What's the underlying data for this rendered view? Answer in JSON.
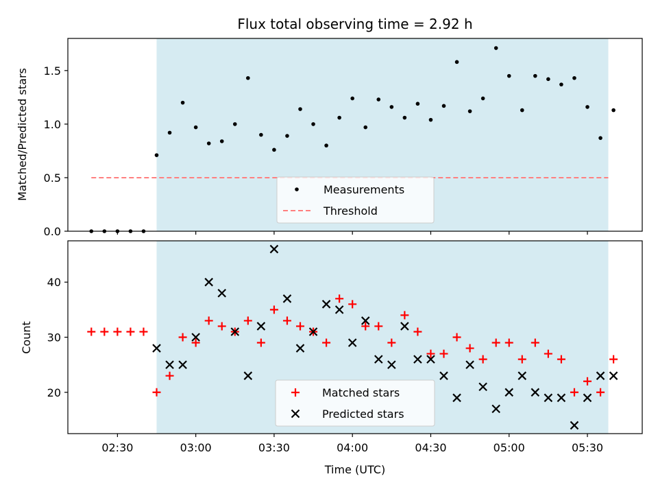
{
  "figure": {
    "title": "Flux total observing time = 2.92 h",
    "background": "#ffffff"
  },
  "colors": {
    "shade": "#add8e6",
    "threshold": "#ff7f7f",
    "measurement": "#000000",
    "matched": "#ff0000",
    "predicted": "#000000"
  },
  "chart_data": [
    {
      "type": "scatter",
      "panel": "top",
      "title": "Flux total observing time = 2.92 h",
      "ylabel": "Matched/Predicted stars",
      "xlabel": "",
      "xlim": [
        "02:11",
        "05:51"
      ],
      "ylim": [
        0,
        1.8
      ],
      "x_ticks": [
        "02:30",
        "03:00",
        "03:30",
        "04:00",
        "04:30",
        "05:00",
        "05:30"
      ],
      "x_tick_labels_visible": false,
      "y_ticks": [
        "0.0",
        "0.5",
        "1.0",
        "1.5"
      ],
      "shaded_interval": [
        "02:45",
        "05:38"
      ],
      "legend_position": "lower center",
      "series": [
        {
          "name": "Measurements",
          "kind": "dot",
          "x": [
            "02:20",
            "02:25",
            "02:30",
            "02:35",
            "02:40",
            "02:45",
            "02:50",
            "02:55",
            "03:00",
            "03:05",
            "03:10",
            "03:15",
            "03:20",
            "03:25",
            "03:30",
            "03:35",
            "03:40",
            "03:45",
            "03:50",
            "03:55",
            "04:00",
            "04:05",
            "04:10",
            "04:15",
            "04:20",
            "04:25",
            "04:30",
            "04:35",
            "04:40",
            "04:45",
            "04:50",
            "04:55",
            "05:00",
            "05:05",
            "05:10",
            "05:15",
            "05:20",
            "05:25",
            "05:30",
            "05:35",
            "05:40"
          ],
          "y": [
            0.0,
            0.0,
            0.0,
            0.0,
            0.0,
            0.71,
            0.92,
            1.2,
            0.97,
            0.82,
            0.84,
            1.0,
            1.43,
            0.9,
            0.76,
            0.89,
            1.14,
            1.0,
            0.8,
            1.06,
            1.24,
            0.97,
            1.23,
            1.16,
            1.06,
            1.19,
            1.04,
            1.17,
            1.58,
            1.12,
            1.24,
            1.71,
            1.45,
            1.13,
            1.45,
            1.42,
            1.37,
            1.43,
            1.16,
            0.87,
            1.13
          ]
        },
        {
          "name": "Threshold",
          "kind": "dashed-line",
          "x": [
            "02:20",
            "05:38"
          ],
          "y": [
            0.5,
            0.5
          ]
        }
      ]
    },
    {
      "type": "scatter",
      "panel": "bottom",
      "xlabel": "Time (UTC)",
      "ylabel": "Count",
      "xlim": [
        "02:11",
        "05:51"
      ],
      "ylim": [
        12.5,
        47.5
      ],
      "x_ticks": [
        "02:30",
        "03:00",
        "03:30",
        "04:00",
        "04:30",
        "05:00",
        "05:30"
      ],
      "y_ticks": [
        "20",
        "30",
        "40"
      ],
      "shaded_interval": [
        "02:45",
        "05:38"
      ],
      "legend_position": "lower center",
      "series": [
        {
          "name": "Matched stars",
          "kind": "plus",
          "x": [
            "02:20",
            "02:25",
            "02:30",
            "02:35",
            "02:40",
            "02:45",
            "02:50",
            "02:55",
            "03:00",
            "03:05",
            "03:10",
            "03:15",
            "03:20",
            "03:25",
            "03:30",
            "03:35",
            "03:40",
            "03:45",
            "03:50",
            "03:55",
            "04:00",
            "04:05",
            "04:10",
            "04:15",
            "04:20",
            "04:25",
            "04:30",
            "04:35",
            "04:40",
            "04:45",
            "04:50",
            "04:55",
            "05:00",
            "05:05",
            "05:10",
            "05:15",
            "05:20",
            "05:25",
            "05:30",
            "05:35",
            "05:40"
          ],
          "y": [
            31,
            31,
            31,
            31,
            31,
            20,
            23,
            30,
            29,
            33,
            32,
            31,
            33,
            29,
            35,
            33,
            32,
            31,
            29,
            37,
            36,
            32,
            32,
            29,
            34,
            31,
            27,
            27,
            30,
            28,
            26,
            29,
            29,
            26,
            29,
            27,
            26,
            20,
            22,
            20,
            26
          ]
        },
        {
          "name": "Predicted stars",
          "kind": "x",
          "x": [
            "02:45",
            "02:50",
            "02:55",
            "03:00",
            "03:05",
            "03:10",
            "03:15",
            "03:20",
            "03:25",
            "03:30",
            "03:35",
            "03:40",
            "03:45",
            "03:50",
            "03:55",
            "04:00",
            "04:05",
            "04:10",
            "04:15",
            "04:20",
            "04:25",
            "04:30",
            "04:35",
            "04:40",
            "04:45",
            "04:50",
            "04:55",
            "05:00",
            "05:05",
            "05:10",
            "05:15",
            "05:20",
            "05:25",
            "05:30",
            "05:35",
            "05:40"
          ],
          "y": [
            28,
            25,
            25,
            30,
            40,
            38,
            31,
            23,
            32,
            46,
            37,
            28,
            31,
            36,
            35,
            29,
            33,
            26,
            25,
            32,
            26,
            26,
            23,
            19,
            25,
            21,
            17,
            20,
            23,
            20,
            19,
            19,
            14,
            19,
            23,
            23
          ]
        }
      ]
    }
  ]
}
